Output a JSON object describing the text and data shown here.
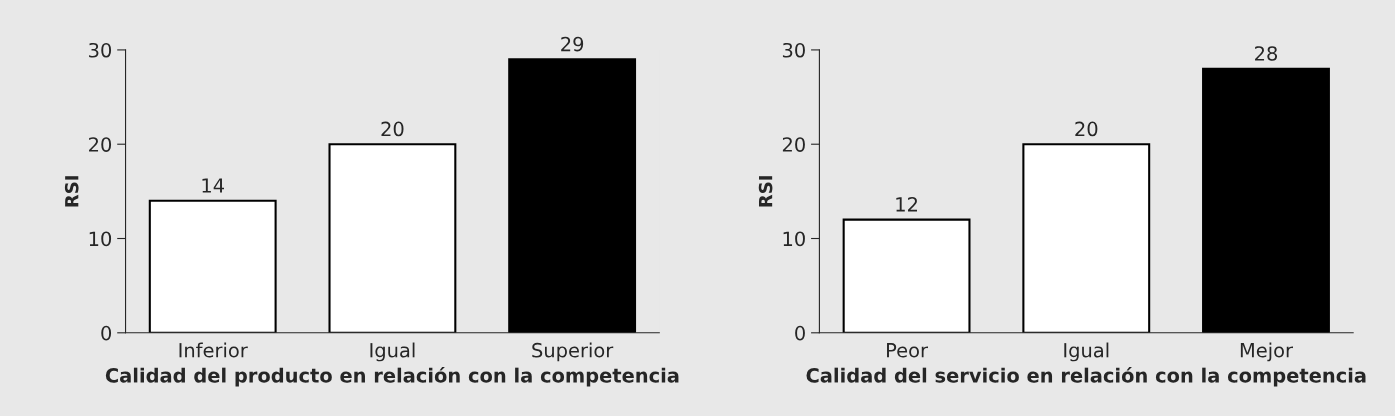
{
  "chart_data": [
    {
      "type": "bar",
      "categories": [
        "Inferior",
        "Igual",
        "Superior"
      ],
      "values": [
        14,
        20,
        29
      ],
      "colors": [
        "#ffffff",
        "#ffffff",
        "#000000"
      ],
      "ylabel": "RSI",
      "xlabel": "Calidad del producto en relación con la competencia",
      "ylim": [
        0,
        30
      ],
      "yticks": [
        0,
        10,
        20,
        30
      ],
      "data_labels": true,
      "grid": false
    },
    {
      "type": "bar",
      "categories": [
        "Peor",
        "Igual",
        "Mejor"
      ],
      "values": [
        12,
        20,
        28
      ],
      "colors": [
        "#ffffff",
        "#ffffff",
        "#000000"
      ],
      "ylabel": "RSI",
      "xlabel": "Calidad del servicio en relación con la competencia",
      "ylim": [
        0,
        30
      ],
      "yticks": [
        0,
        10,
        20,
        30
      ],
      "data_labels": true,
      "grid": false
    }
  ]
}
